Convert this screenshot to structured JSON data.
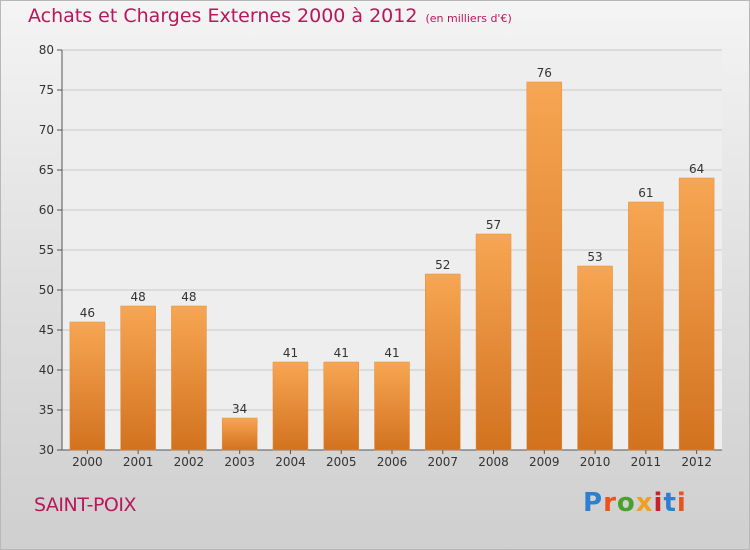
{
  "header": {
    "title": "Achats et Charges Externes 2000 à 2012",
    "unit": "(en milliers d'€)"
  },
  "footer": {
    "commune": "SAINT-POIX",
    "logo": "Proxiti"
  },
  "colors": {
    "accent": "#b8175a",
    "bar_light": "#f7a653",
    "bar_dark": "#d2721f",
    "logo_letters": [
      "#2f7fd0",
      "#e8541d",
      "#4aa02c",
      "#f0a020",
      "#c8202c",
      "#2f7fd0",
      "#e8541d"
    ]
  },
  "chart_data": {
    "type": "bar",
    "title": "Achats et Charges Externes 2000 à 2012",
    "subtitle": "(en milliers d'€)",
    "xlabel": "",
    "ylabel": "",
    "categories": [
      "2000",
      "2001",
      "2002",
      "2003",
      "2004",
      "2005",
      "2006",
      "2007",
      "2008",
      "2009",
      "2010",
      "2011",
      "2012"
    ],
    "values": [
      46,
      48,
      48,
      34,
      41,
      41,
      41,
      52,
      57,
      76,
      53,
      61,
      64
    ],
    "ylim": [
      30,
      80
    ],
    "yticks": [
      30,
      35,
      40,
      45,
      50,
      55,
      60,
      65,
      70,
      75,
      80
    ],
    "grid": true,
    "legend": "none"
  }
}
